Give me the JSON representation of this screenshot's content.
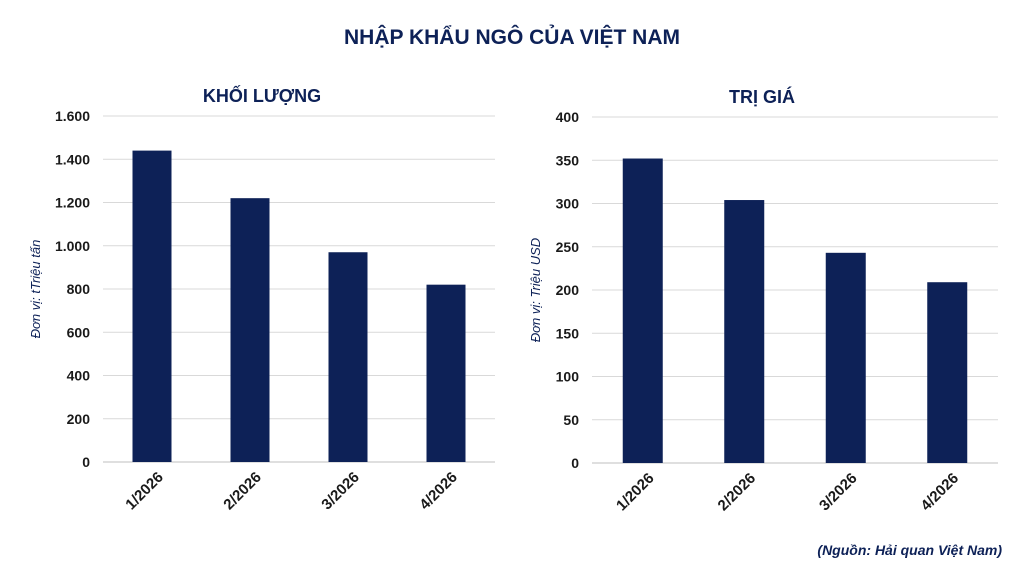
{
  "title": "NHẬP KHẨU NGÔ CỦA VIỆT NAM",
  "source": "(Nguồn: Hải quan Việt Nam)",
  "colors": {
    "bar": "#0d2157",
    "grid": "#d9d9d9",
    "title": "#0d2157"
  },
  "chart_data": [
    {
      "type": "bar",
      "title": "KHỐI LƯỢNG",
      "ylabel": "Đơn vị: tTriệu tấn",
      "xlabel": "",
      "categories": [
        "1/2026",
        "2/2026",
        "3/2026",
        "4/2026"
      ],
      "values": [
        1440,
        1220,
        970,
        820
      ],
      "ylim": [
        0,
        1600
      ],
      "yticks": [
        0,
        200,
        400,
        600,
        800,
        1000,
        1200,
        1400,
        1600
      ],
      "ytick_labels": [
        "0",
        "200",
        "400",
        "600",
        "800",
        "1.000",
        "1.200",
        "1.400",
        "1.600"
      ],
      "grid": true,
      "legend": "none"
    },
    {
      "type": "bar",
      "title": "TRỊ GIÁ",
      "ylabel": "Đơn vị: Triệu USD",
      "xlabel": "",
      "categories": [
        "1/2026",
        "2/2026",
        "3/2026",
        "4/2026"
      ],
      "values": [
        352,
        304,
        243,
        209
      ],
      "ylim": [
        0,
        400
      ],
      "yticks": [
        0,
        50,
        100,
        150,
        200,
        250,
        300,
        350,
        400
      ],
      "ytick_labels": [
        "0",
        "50",
        "100",
        "150",
        "200",
        "250",
        "300",
        "350",
        "400"
      ],
      "grid": true,
      "legend": "none"
    }
  ]
}
